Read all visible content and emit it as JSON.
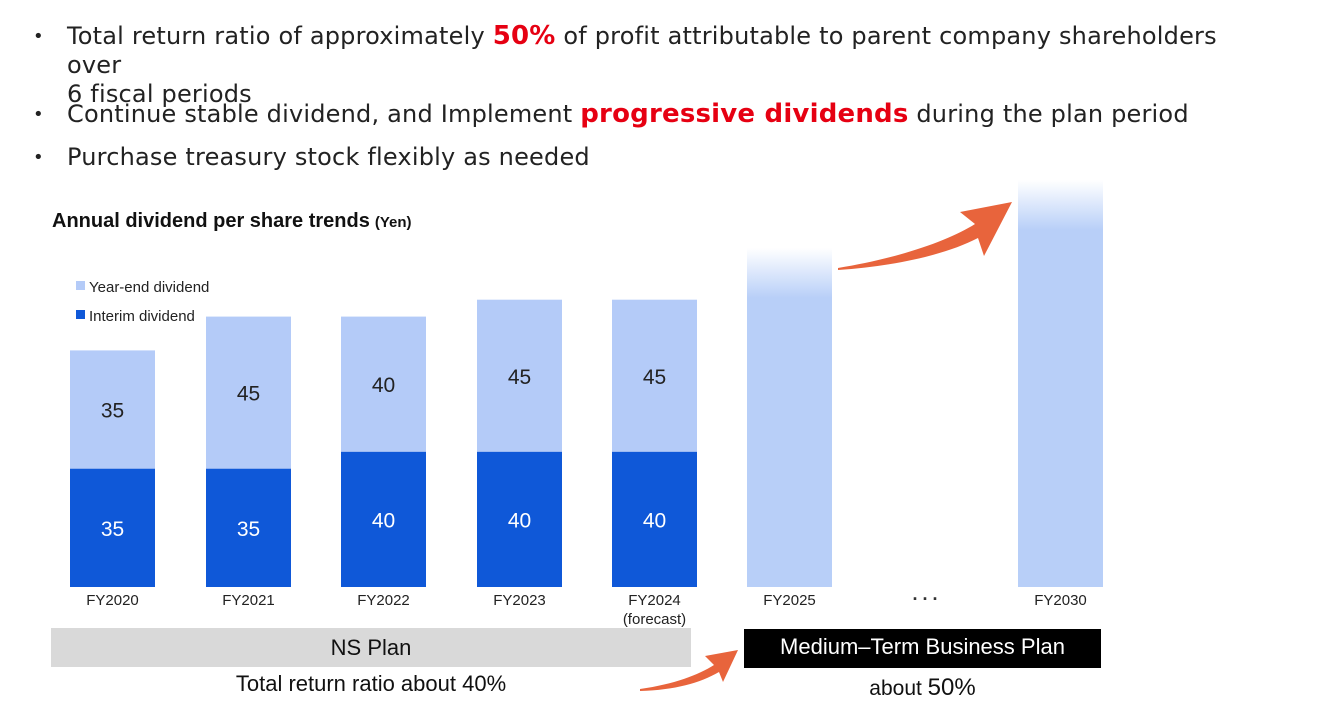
{
  "bullets": [
    {
      "pre": "Total return ratio of approximately ",
      "hl": "50%",
      "post": " of profit attributable to parent company shareholders over",
      "line2": "6 fiscal periods"
    },
    {
      "pre": "Continue stable dividend, and Implement ",
      "hl": "progressive dividends",
      "post": " during the plan period"
    },
    {
      "pre": "Purchase treasury stock flexibly as needed"
    }
  ],
  "colors": {
    "year_end": "#b4cbf8",
    "interim": "#0f58d8",
    "future_bar": "#b8cff8",
    "arrow": "#e8643c",
    "highlight": "#e60012"
  },
  "chart_data": {
    "type": "bar",
    "stacked": true,
    "title": "Annual dividend per share trends",
    "unit": "(Yen)",
    "categories": [
      "FY2020",
      "FY2021",
      "FY2022",
      "FY2023",
      "FY2024",
      "FY2025",
      "FY2030"
    ],
    "category_notes": {
      "FY2024": "(forecast)"
    },
    "series": [
      {
        "name": "Interim  dividend",
        "values": [
          35,
          35,
          40,
          40,
          40,
          null,
          null
        ],
        "color": "#0f58d8"
      },
      {
        "name": "Year-end dividend",
        "values": [
          35,
          45,
          40,
          45,
          45,
          null,
          null
        ],
        "color": "#b4cbf8"
      }
    ],
    "projected": [
      "FY2025",
      "FY2030"
    ],
    "ellipsis": ". . .",
    "legend_placement": "top-left",
    "grid": false
  },
  "bands": {
    "ns_plan": "NS Plan",
    "ns_note": "Total return ratio about 40%",
    "mtp": "Medium–Term Business Plan",
    "mtp_note_pre": "about ",
    "mtp_note_value": "50%"
  }
}
